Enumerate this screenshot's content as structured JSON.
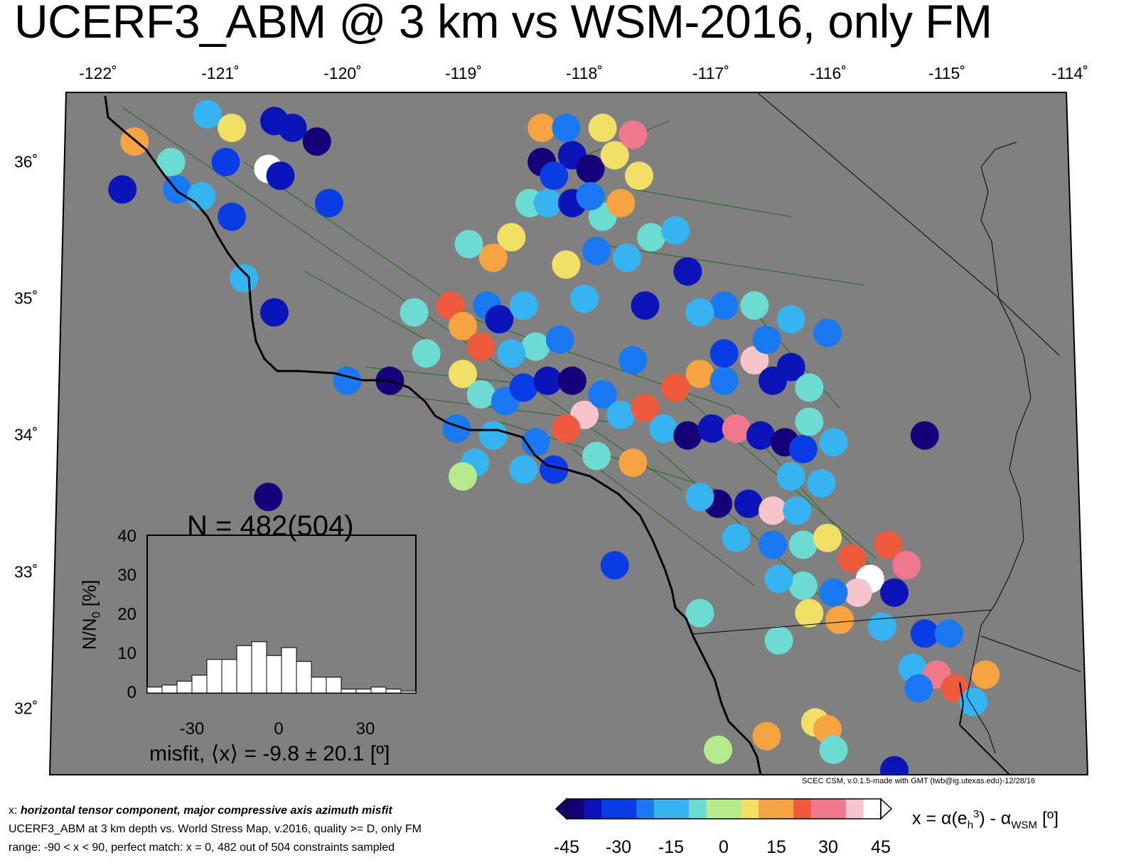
{
  "title": "UCERF3_ABM @ 3 km vs WSM-2016, only FM",
  "lon_ticks": [
    "-122˚",
    "-121˚",
    "-120˚",
    "-119˚",
    "-118˚",
    "-117˚",
    "-116˚",
    "-115˚",
    "-114˚"
  ],
  "lat_ticks": [
    "36˚",
    "35˚",
    "34˚",
    "33˚",
    "32˚"
  ],
  "credit": "SCEC CSM, v.0.1.5-made with GMT (twb@ig.utexas.edu)-12/28/16",
  "captions": {
    "prefix": "x: ",
    "line1": "horizontal tensor component, major compressive axis azimuth misfit",
    "line2": "UCERF3_ABM at 3 km depth vs.  World Stress Map, v.2016, quality >= D, only FM",
    "line3": "range: -90 < x < 90, perfect match: x = 0, 482 out of 504 constraints sampled"
  },
  "colorbar": {
    "ticks": [
      "-45",
      "-30",
      "-15",
      "0",
      "15",
      "30",
      "45"
    ],
    "label_main": "x = α(e",
    "label_sub": "h",
    "label_sup": "3",
    "label_mid": ") - α",
    "label_sub2": "WSM",
    "label_end": " [º]",
    "colors": [
      "#15007a",
      "#0a14b8",
      "#0a3ce6",
      "#1a78f2",
      "#36b4f2",
      "#6cdcd2",
      "#b6ea8c",
      "#f2e066",
      "#f6a442",
      "#f05a3c",
      "#f0788c",
      "#f8c4cc",
      "#ffffff"
    ]
  },
  "histogram": {
    "title": "N = 482(504)",
    "ylabel": "N/N",
    "ylabel_sub": "0",
    "ylabel_end": " [%]",
    "yticks": [
      "40",
      "30",
      "20",
      "10",
      "0"
    ],
    "xticks": [
      "-30",
      "0",
      "30"
    ],
    "xlabel": "misfit, ⟨x⟩ = -9.8 ± 20.1 [º]"
  },
  "chart_data": {
    "type": "bar",
    "title": "N = 482(504)",
    "xlabel": "misfit, ⟨x⟩ = -9.8 ± 20.1 [º]",
    "ylabel": "N/N0 [%]",
    "xlim": [
      -45,
      45
    ],
    "ylim": [
      0,
      40
    ],
    "bin_width": 5,
    "bin_starts": [
      -45,
      -40,
      -35,
      -30,
      -25,
      -20,
      -15,
      -10,
      -5,
      0,
      5,
      10,
      15,
      20,
      25,
      30,
      35,
      40
    ],
    "values": [
      1.5,
      2.0,
      3.0,
      4.5,
      8.5,
      8.5,
      12.0,
      13.0,
      9.5,
      11.5,
      8.0,
      4.0,
      4.0,
      1.0,
      1.0,
      1.5,
      1.0,
      0.5
    ]
  },
  "map_data": {
    "lon_range": [
      -122.3,
      -113.9
    ],
    "lat_range": [
      31.45,
      36.5
    ],
    "misfit_spots": [
      {
        "lon": -121.1,
        "lat": 36.35,
        "v": -12
      },
      {
        "lon": -120.9,
        "lat": 36.25,
        "v": 8
      },
      {
        "lon": -120.55,
        "lat": 36.3,
        "v": -38
      },
      {
        "lon": -120.4,
        "lat": 36.25,
        "v": -40
      },
      {
        "lon": -120.2,
        "lat": 36.15,
        "v": -44
      },
      {
        "lon": -121.7,
        "lat": 36.15,
        "v": 18
      },
      {
        "lon": -121.4,
        "lat": 36.0,
        "v": -8
      },
      {
        "lon": -120.95,
        "lat": 36.0,
        "v": -30
      },
      {
        "lon": -120.6,
        "lat": 35.95,
        "v": 42
      },
      {
        "lon": -120.5,
        "lat": 35.9,
        "v": -35
      },
      {
        "lon": -121.8,
        "lat": 35.8,
        "v": -35
      },
      {
        "lon": -121.35,
        "lat": 35.8,
        "v": -20
      },
      {
        "lon": -121.15,
        "lat": 35.75,
        "v": -15
      },
      {
        "lon": -120.1,
        "lat": 35.7,
        "v": -33
      },
      {
        "lon": -120.9,
        "lat": 35.6,
        "v": -32
      },
      {
        "lon": -120.8,
        "lat": 35.15,
        "v": -12
      },
      {
        "lon": -120.55,
        "lat": 34.9,
        "v": -36
      },
      {
        "lon": -119.95,
        "lat": 34.4,
        "v": -20
      },
      {
        "lon": -119.6,
        "lat": 34.4,
        "v": -42
      },
      {
        "lon": -120.6,
        "lat": 33.55,
        "v": -42
      },
      {
        "lon": -119.1,
        "lat": 34.95,
        "v": 22
      },
      {
        "lon": -118.8,
        "lat": 34.95,
        "v": -25
      },
      {
        "lon": -119.0,
        "lat": 34.8,
        "v": 18
      },
      {
        "lon": -118.85,
        "lat": 34.65,
        "v": 25
      },
      {
        "lon": -118.7,
        "lat": 34.85,
        "v": -40
      },
      {
        "lon": -118.5,
        "lat": 34.95,
        "v": -18
      },
      {
        "lon": -118.4,
        "lat": 34.65,
        "v": -5
      },
      {
        "lon": -119.3,
        "lat": 34.6,
        "v": -5
      },
      {
        "lon": -119.0,
        "lat": 34.45,
        "v": 10
      },
      {
        "lon": -118.85,
        "lat": 34.3,
        "v": -10
      },
      {
        "lon": -118.65,
        "lat": 34.25,
        "v": -20
      },
      {
        "lon": -118.5,
        "lat": 34.35,
        "v": -32
      },
      {
        "lon": -118.3,
        "lat": 34.4,
        "v": -38
      },
      {
        "lon": -118.1,
        "lat": 34.4,
        "v": -42
      },
      {
        "lon": -118.0,
        "lat": 34.15,
        "v": 38
      },
      {
        "lon": -118.15,
        "lat": 34.05,
        "v": 25
      },
      {
        "lon": -117.85,
        "lat": 34.3,
        "v": -25
      },
      {
        "lon": -117.7,
        "lat": 34.15,
        "v": -15
      },
      {
        "lon": -117.5,
        "lat": 34.2,
        "v": 20
      },
      {
        "lon": -117.35,
        "lat": 34.05,
        "v": -15
      },
      {
        "lon": -117.15,
        "lat": 34.0,
        "v": -42
      },
      {
        "lon": -116.95,
        "lat": 34.05,
        "v": -35
      },
      {
        "lon": -116.75,
        "lat": 34.05,
        "v": 30
      },
      {
        "lon": -116.55,
        "lat": 34.0,
        "v": -38
      },
      {
        "lon": -116.35,
        "lat": 33.95,
        "v": -44
      },
      {
        "lon": -116.2,
        "lat": 33.9,
        "v": -30
      },
      {
        "lon": -115.95,
        "lat": 33.95,
        "v": -18
      },
      {
        "lon": -119.05,
        "lat": 34.05,
        "v": -25
      },
      {
        "lon": -118.75,
        "lat": 34.0,
        "v": -15
      },
      {
        "lon": -118.4,
        "lat": 33.95,
        "v": -20
      },
      {
        "lon": -117.9,
        "lat": 33.85,
        "v": -10
      },
      {
        "lon": -117.6,
        "lat": 33.8,
        "v": 15
      },
      {
        "lon": -118.9,
        "lat": 33.8,
        "v": -18
      },
      {
        "lon": -118.5,
        "lat": 33.75,
        "v": -12
      },
      {
        "lon": -118.25,
        "lat": 33.75,
        "v": -30
      },
      {
        "lon": -119.0,
        "lat": 33.7,
        "v": -3
      },
      {
        "lon": -117.05,
        "lat": 34.45,
        "v": 12
      },
      {
        "lon": -117.25,
        "lat": 34.35,
        "v": 22
      },
      {
        "lon": -116.85,
        "lat": 34.4,
        "v": -20
      },
      {
        "lon": -116.6,
        "lat": 34.55,
        "v": 40
      },
      {
        "lon": -116.45,
        "lat": 34.4,
        "v": -40
      },
      {
        "lon": -116.3,
        "lat": 34.5,
        "v": -38
      },
      {
        "lon": -116.15,
        "lat": 34.35,
        "v": -10
      },
      {
        "lon": -116.3,
        "lat": 34.85,
        "v": -12
      },
      {
        "lon": -116.0,
        "lat": 34.75,
        "v": -20
      },
      {
        "lon": -116.5,
        "lat": 34.7,
        "v": -25
      },
      {
        "lon": -116.85,
        "lat": 34.95,
        "v": -22
      },
      {
        "lon": -117.05,
        "lat": 34.9,
        "v": -18
      },
      {
        "lon": -116.6,
        "lat": 34.95,
        "v": -10
      },
      {
        "lon": -117.6,
        "lat": 34.55,
        "v": -20
      },
      {
        "lon": -117.5,
        "lat": 34.95,
        "v": -35
      },
      {
        "lon": -118.0,
        "lat": 35.0,
        "v": -12
      },
      {
        "lon": -118.15,
        "lat": 35.25,
        "v": 5
      },
      {
        "lon": -117.9,
        "lat": 35.35,
        "v": -25
      },
      {
        "lon": -117.65,
        "lat": 35.3,
        "v": -15
      },
      {
        "lon": -117.45,
        "lat": 35.45,
        "v": -5
      },
      {
        "lon": -117.25,
        "lat": 35.5,
        "v": -12
      },
      {
        "lon": -118.6,
        "lat": 35.45,
        "v": 8
      },
      {
        "lon": -118.75,
        "lat": 35.3,
        "v": 15
      },
      {
        "lon": -118.95,
        "lat": 35.4,
        "v": -8
      },
      {
        "lon": -118.45,
        "lat": 35.7,
        "v": -5
      },
      {
        "lon": -118.3,
        "lat": 35.7,
        "v": -18
      },
      {
        "lon": -118.1,
        "lat": 35.7,
        "v": -35
      },
      {
        "lon": -117.85,
        "lat": 35.6,
        "v": -10
      },
      {
        "lon": -117.7,
        "lat": 35.7,
        "v": 12
      },
      {
        "lon": -118.35,
        "lat": 36.0,
        "v": -44
      },
      {
        "lon": -118.1,
        "lat": 36.05,
        "v": -38
      },
      {
        "lon": -117.95,
        "lat": 35.95,
        "v": -44
      },
      {
        "lon": -117.75,
        "lat": 36.05,
        "v": 5
      },
      {
        "lon": -117.55,
        "lat": 35.9,
        "v": 10
      },
      {
        "lon": -118.35,
        "lat": 36.25,
        "v": 15
      },
      {
        "lon": -118.15,
        "lat": 36.25,
        "v": -20
      },
      {
        "lon": -117.85,
        "lat": 36.25,
        "v": 10
      },
      {
        "lon": -117.6,
        "lat": 36.2,
        "v": 30
      },
      {
        "lon": -118.25,
        "lat": 35.9,
        "v": -28
      },
      {
        "lon": -117.95,
        "lat": 35.75,
        "v": -20
      },
      {
        "lon": -116.9,
        "lat": 33.5,
        "v": -44
      },
      {
        "lon": -116.65,
        "lat": 33.5,
        "v": -36
      },
      {
        "lon": -116.45,
        "lat": 33.45,
        "v": 35
      },
      {
        "lon": -116.25,
        "lat": 33.45,
        "v": -18
      },
      {
        "lon": -117.05,
        "lat": 33.55,
        "v": -15
      },
      {
        "lon": -116.75,
        "lat": 33.25,
        "v": -15
      },
      {
        "lon": -116.45,
        "lat": 33.2,
        "v": -22
      },
      {
        "lon": -116.2,
        "lat": 33.2,
        "v": -10
      },
      {
        "lon": -116.0,
        "lat": 33.25,
        "v": 10
      },
      {
        "lon": -115.8,
        "lat": 33.1,
        "v": 22
      },
      {
        "lon": -115.5,
        "lat": 33.2,
        "v": 25
      },
      {
        "lon": -115.35,
        "lat": 33.05,
        "v": 30
      },
      {
        "lon": -115.65,
        "lat": 32.95,
        "v": 42
      },
      {
        "lon": -115.45,
        "lat": 32.85,
        "v": -40
      },
      {
        "lon": -115.75,
        "lat": 32.85,
        "v": 40
      },
      {
        "lon": -115.95,
        "lat": 32.85,
        "v": -20
      },
      {
        "lon": -116.2,
        "lat": 32.9,
        "v": -5
      },
      {
        "lon": -116.4,
        "lat": 32.95,
        "v": -12
      },
      {
        "lon": -115.9,
        "lat": 32.65,
        "v": 18
      },
      {
        "lon": -116.15,
        "lat": 32.7,
        "v": 10
      },
      {
        "lon": -115.55,
        "lat": 32.6,
        "v": -15
      },
      {
        "lon": -115.2,
        "lat": 32.55,
        "v": -30
      },
      {
        "lon": -115.0,
        "lat": 32.55,
        "v": -25
      },
      {
        "lon": -115.3,
        "lat": 32.3,
        "v": -18
      },
      {
        "lon": -115.1,
        "lat": 32.25,
        "v": 32
      },
      {
        "lon": -114.95,
        "lat": 32.15,
        "v": 20
      },
      {
        "lon": -114.8,
        "lat": 32.05,
        "v": -12
      },
      {
        "lon": -114.7,
        "lat": 32.25,
        "v": 15
      },
      {
        "lon": -115.25,
        "lat": 32.15,
        "v": -20
      },
      {
        "lon": -116.4,
        "lat": 32.5,
        "v": -10
      },
      {
        "lon": -116.5,
        "lat": 31.8,
        "v": 15
      },
      {
        "lon": -116.1,
        "lat": 31.9,
        "v": 10
      },
      {
        "lon": -116.0,
        "lat": 31.85,
        "v": 18
      },
      {
        "lon": -115.95,
        "lat": 31.7,
        "v": -10
      },
      {
        "lon": -115.45,
        "lat": 31.55,
        "v": -35
      },
      {
        "lon": -115.2,
        "lat": 34.0,
        "v": -44
      },
      {
        "lon": -117.75,
        "lat": 33.05,
        "v": -30
      },
      {
        "lon": -117.05,
        "lat": 32.7,
        "v": -10
      },
      {
        "lon": -116.9,
        "lat": 31.7,
        "v": -2
      },
      {
        "lon": -117.15,
        "lat": 35.2,
        "v": -35
      },
      {
        "lon": -116.85,
        "lat": 34.6,
        "v": -30
      },
      {
        "lon": -116.3,
        "lat": 33.7,
        "v": -15
      },
      {
        "lon": -116.05,
        "lat": 33.65,
        "v": -12
      },
      {
        "lon": -116.15,
        "lat": 34.1,
        "v": -5
      },
      {
        "lon": -119.4,
        "lat": 34.9,
        "v": -5
      },
      {
        "lon": -118.2,
        "lat": 34.7,
        "v": -22
      },
      {
        "lon": -118.6,
        "lat": 34.6,
        "v": -15
      }
    ]
  }
}
